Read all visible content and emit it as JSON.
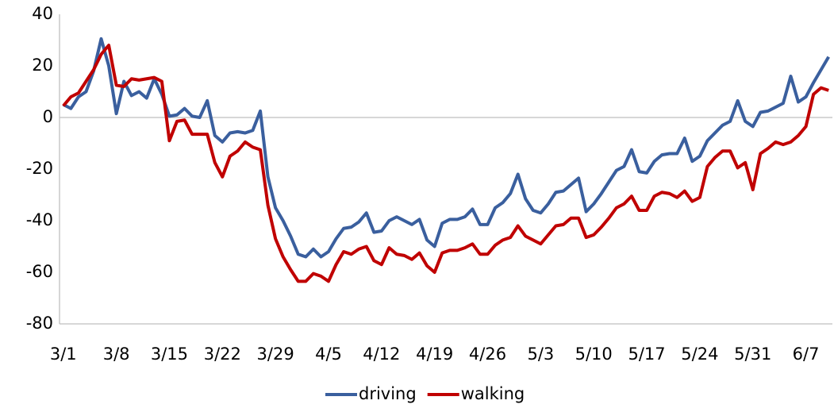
{
  "chart_data": {
    "type": "line",
    "categories": [
      "3/1",
      null,
      null,
      null,
      null,
      null,
      null,
      "3/8",
      null,
      null,
      null,
      null,
      null,
      null,
      "3/15",
      null,
      null,
      null,
      null,
      null,
      null,
      "3/22",
      null,
      null,
      null,
      null,
      null,
      null,
      "3/29",
      null,
      null,
      null,
      null,
      null,
      null,
      "4/5",
      null,
      null,
      null,
      null,
      null,
      null,
      "4/12",
      null,
      null,
      null,
      null,
      null,
      null,
      "4/19",
      null,
      null,
      null,
      null,
      null,
      null,
      "4/26",
      null,
      null,
      null,
      null,
      null,
      null,
      "5/3",
      null,
      null,
      null,
      null,
      null,
      null,
      "5/10",
      null,
      null,
      null,
      null,
      null,
      null,
      "5/17",
      null,
      null,
      null,
      null,
      null,
      null,
      "5/24",
      null,
      null,
      null,
      null,
      null,
      null,
      "5/31",
      null,
      null,
      null,
      null,
      null,
      null,
      "6/7",
      null,
      null,
      null
    ],
    "series": [
      {
        "name": "driving",
        "color": "#3a5f9e",
        "values": [
          5,
          3.5,
          8,
          10,
          18,
          30.5,
          20,
          1.5,
          14,
          8.5,
          10,
          7.5,
          15,
          9,
          0.5,
          1,
          3.5,
          0.5,
          0,
          6.5,
          -7,
          -9.5,
          -6,
          -5.5,
          -6,
          -5,
          2.5,
          -23,
          -35,
          -40,
          -46,
          -53,
          -54,
          -51,
          -54,
          -52,
          -47,
          -43,
          -42.5,
          -40.5,
          -37,
          -44.5,
          -44,
          -40,
          -38.5,
          -40,
          -41.5,
          -39.5,
          -47.5,
          -50,
          -41,
          -39.5,
          -39.5,
          -38.5,
          -35.5,
          -41.5,
          -41.5,
          -35,
          -33,
          -29.5,
          -22,
          -31.5,
          -36,
          -37,
          -33.5,
          -29,
          -28.5,
          -26,
          -23.5,
          -36.5,
          -33.5,
          -29.5,
          -25,
          -20.5,
          -19,
          -12.5,
          -21,
          -21.5,
          -17,
          -14.5,
          -14,
          -14,
          -8,
          -17,
          -15,
          -9,
          -6,
          -3,
          -1.5,
          6.5,
          -1.5,
          -3.5,
          2,
          2.5,
          4,
          5.5,
          16,
          6,
          8,
          13.5,
          18.5,
          23.5
        ]
      },
      {
        "name": "walking",
        "color": "#c00000",
        "values": [
          4.5,
          8,
          9.5,
          14,
          18.5,
          24.5,
          28,
          12.5,
          12,
          15,
          14.5,
          15,
          15.5,
          14,
          -9,
          -1.5,
          -1,
          -6.5,
          -6.5,
          -6.5,
          -17.5,
          -23,
          -15,
          -13,
          -9.5,
          -11.5,
          -12.5,
          -34,
          -47,
          -54,
          -59,
          -63.5,
          -63.5,
          -60.5,
          -61.5,
          -63.5,
          -57,
          -52,
          -53,
          -51,
          -50,
          -55.5,
          -57,
          -50.5,
          -53,
          -53.5,
          -55,
          -52.5,
          -57.5,
          -60,
          -52.5,
          -51.5,
          -51.5,
          -50.5,
          -49,
          -53,
          -53,
          -49.5,
          -47.5,
          -46.5,
          -42,
          -46,
          -47.5,
          -49,
          -45.5,
          -42,
          -41.5,
          -39,
          -39,
          -46.5,
          -45.5,
          -42.5,
          -39,
          -35,
          -33.5,
          -30.5,
          -36,
          -36,
          -30.5,
          -29,
          -29.5,
          -31,
          -28.5,
          -32.5,
          -31,
          -19,
          -15.5,
          -13,
          -13,
          -19.5,
          -17.5,
          -28,
          -14,
          -12,
          -9.5,
          -10.5,
          -9.5,
          -7,
          -3.5,
          9,
          11.5,
          10.5
        ]
      }
    ],
    "ylim": [
      -80,
      40
    ],
    "yticks": [
      -80,
      -60,
      -40,
      -20,
      0,
      20,
      40
    ],
    "grid": false,
    "legend": "bottom"
  }
}
